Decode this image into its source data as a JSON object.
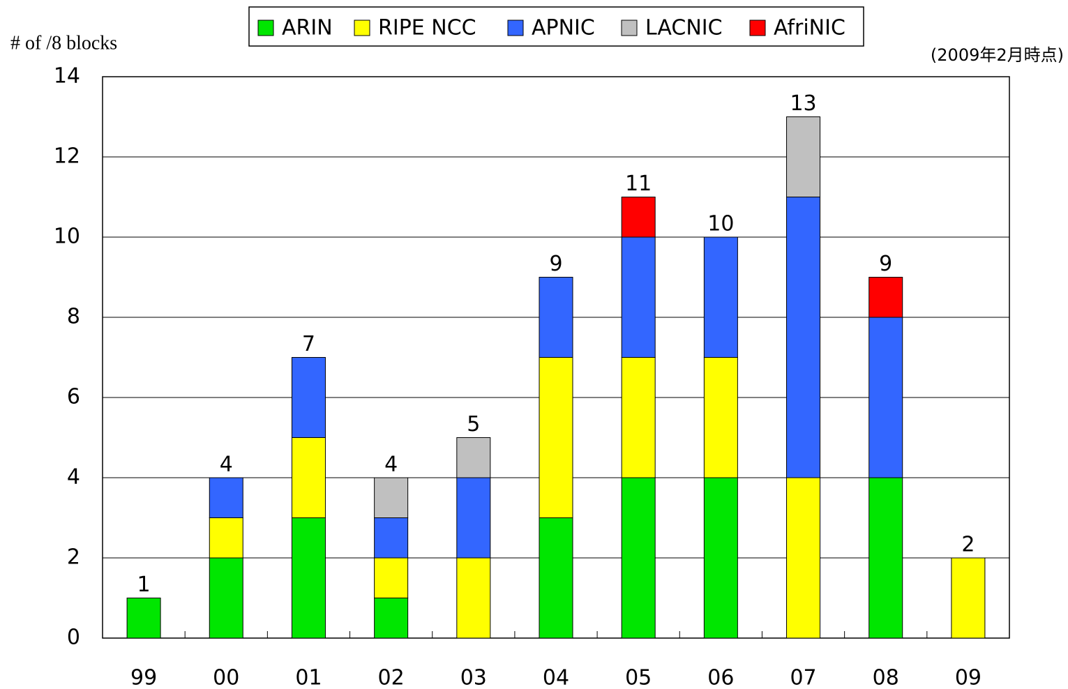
{
  "chart_data": {
    "type": "stacked-bar",
    "y_axis_label": "# of /8 blocks",
    "note": "(2009年2月時点)",
    "categories": [
      "99",
      "00",
      "01",
      "02",
      "03",
      "04",
      "05",
      "06",
      "07",
      "08",
      "09"
    ],
    "series": [
      {
        "name": "ARIN",
        "color": "#00e600",
        "values": [
          1,
          2,
          3,
          1,
          0,
          3,
          4,
          4,
          0,
          4,
          0
        ]
      },
      {
        "name": "RIPE NCC",
        "color": "#ffff00",
        "values": [
          0,
          1,
          2,
          1,
          2,
          4,
          3,
          3,
          4,
          0,
          2
        ]
      },
      {
        "name": "APNIC",
        "color": "#3366ff",
        "values": [
          0,
          1,
          2,
          1,
          2,
          2,
          3,
          3,
          7,
          4,
          0
        ]
      },
      {
        "name": "LACNIC",
        "color": "#c0c0c0",
        "values": [
          0,
          0,
          0,
          1,
          1,
          0,
          0,
          0,
          2,
          0,
          0
        ]
      },
      {
        "name": "AfriNIC",
        "color": "#ff0000",
        "values": [
          0,
          0,
          0,
          0,
          0,
          0,
          1,
          0,
          0,
          1,
          0
        ]
      }
    ],
    "totals": [
      1,
      4,
      7,
      4,
      5,
      9,
      11,
      10,
      13,
      9,
      2
    ],
    "ylim": [
      0,
      14
    ],
    "yticks": [
      0,
      2,
      4,
      6,
      8,
      10,
      12,
      14
    ],
    "grid": true
  }
}
